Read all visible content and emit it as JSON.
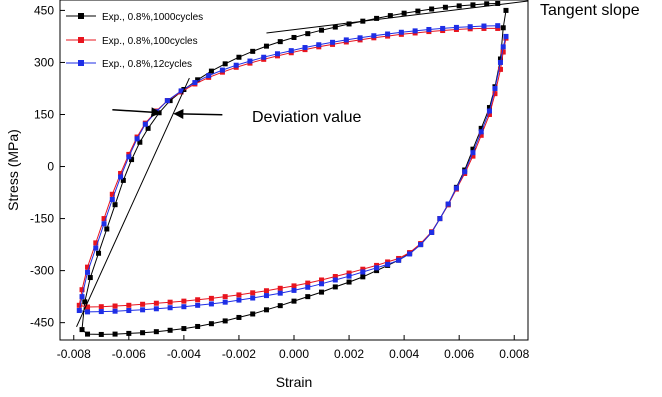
{
  "chart_data": {
    "type": "line",
    "xlabel": "Strain",
    "ylabel": "Stress (MPa)",
    "xlim": [
      -0.0085,
      0.0085
    ],
    "ylim": [
      -500,
      480
    ],
    "x_ticks": [
      -0.008,
      -0.006,
      -0.004,
      -0.002,
      0.0,
      0.002,
      0.004,
      0.006,
      0.008
    ],
    "x_tick_labels": [
      "-0.008",
      "-0.006",
      "-0.004",
      "-0.002",
      "0.000",
      "0.002",
      "0.004",
      "0.006",
      "0.008"
    ],
    "y_ticks": [
      450,
      300,
      150,
      0,
      -150,
      -300,
      -450
    ],
    "y_tick_labels": [
      "450",
      "300",
      "150",
      "0",
      "-150",
      "-300",
      "-450"
    ],
    "grid": false,
    "legend_position": "top-left",
    "series": [
      {
        "name": "Exp.,  0.8%,1000cycles",
        "color": "#000000",
        "marker": "square",
        "points": [
          [
            0.0077,
            450
          ],
          [
            0.0076,
            400
          ],
          [
            0.0075,
            310
          ],
          [
            0.0073,
            230
          ],
          [
            0.0071,
            170
          ],
          [
            0.0068,
            110
          ],
          [
            0.0065,
            50
          ],
          [
            0.0062,
            -10
          ],
          [
            0.0059,
            -60
          ],
          [
            0.0056,
            -110
          ],
          [
            0.0053,
            -150
          ],
          [
            0.005,
            -190
          ],
          [
            0.0046,
            -225
          ],
          [
            0.0042,
            -250
          ],
          [
            0.0038,
            -270
          ],
          [
            0.0034,
            -285
          ],
          [
            0.003,
            -300
          ],
          [
            0.0025,
            -318
          ],
          [
            0.002,
            -333
          ],
          [
            0.0015,
            -347
          ],
          [
            0.001,
            -362
          ],
          [
            0.0005,
            -375
          ],
          [
            0.0,
            -388
          ],
          [
            -0.0005,
            -401
          ],
          [
            -0.001,
            -413
          ],
          [
            -0.0015,
            -425
          ],
          [
            -0.002,
            -435
          ],
          [
            -0.0025,
            -445
          ],
          [
            -0.003,
            -453
          ],
          [
            -0.0035,
            -461
          ],
          [
            -0.004,
            -467
          ],
          [
            -0.0045,
            -472
          ],
          [
            -0.005,
            -476
          ],
          [
            -0.0055,
            -479
          ],
          [
            -0.006,
            -481
          ],
          [
            -0.0065,
            -483
          ],
          [
            -0.007,
            -484
          ],
          [
            -0.0075,
            -483
          ],
          [
            -0.0077,
            -470
          ],
          [
            -0.0076,
            -390
          ],
          [
            -0.0074,
            -320
          ],
          [
            -0.0071,
            -250
          ],
          [
            -0.0068,
            -180
          ],
          [
            -0.0065,
            -110
          ],
          [
            -0.0062,
            -40
          ],
          [
            -0.0059,
            20
          ],
          [
            -0.0056,
            70
          ],
          [
            -0.0053,
            110
          ],
          [
            -0.0049,
            155
          ],
          [
            -0.0045,
            190
          ],
          [
            -0.004,
            222
          ],
          [
            -0.0035,
            250
          ],
          [
            -0.003,
            275
          ],
          [
            -0.0025,
            296
          ],
          [
            -0.002,
            315
          ],
          [
            -0.0015,
            332
          ],
          [
            -0.001,
            347
          ],
          [
            -0.0005,
            360
          ],
          [
            0.0,
            372
          ],
          [
            0.0005,
            383
          ],
          [
            0.001,
            393
          ],
          [
            0.0015,
            402
          ],
          [
            0.002,
            411
          ],
          [
            0.0025,
            419
          ],
          [
            0.003,
            427
          ],
          [
            0.0035,
            435
          ],
          [
            0.004,
            442
          ],
          [
            0.0045,
            448
          ],
          [
            0.005,
            454
          ],
          [
            0.0055,
            459
          ],
          [
            0.006,
            463
          ],
          [
            0.0065,
            466
          ],
          [
            0.007,
            469
          ],
          [
            0.0074,
            470
          ]
        ]
      },
      {
        "name": "Exp.,  0.8%,100cycles",
        "color": "#e8141e",
        "marker": "square",
        "points": [
          [
            0.0077,
            370
          ],
          [
            0.0076,
            330
          ],
          [
            0.0075,
            280
          ],
          [
            0.0073,
            210
          ],
          [
            0.0071,
            150
          ],
          [
            0.0068,
            90
          ],
          [
            0.0065,
            30
          ],
          [
            0.0062,
            -20
          ],
          [
            0.0059,
            -65
          ],
          [
            0.0056,
            -110
          ],
          [
            0.0053,
            -150
          ],
          [
            0.005,
            -188
          ],
          [
            0.0046,
            -222
          ],
          [
            0.0042,
            -248
          ],
          [
            0.0038,
            -265
          ],
          [
            0.0034,
            -275
          ],
          [
            0.003,
            -285
          ],
          [
            0.0025,
            -296
          ],
          [
            0.002,
            -307
          ],
          [
            0.0015,
            -317
          ],
          [
            0.001,
            -327
          ],
          [
            0.0005,
            -336
          ],
          [
            0.0,
            -344
          ],
          [
            -0.0005,
            -351
          ],
          [
            -0.001,
            -358
          ],
          [
            -0.0015,
            -364
          ],
          [
            -0.002,
            -370
          ],
          [
            -0.0025,
            -375
          ],
          [
            -0.003,
            -380
          ],
          [
            -0.0035,
            -384
          ],
          [
            -0.004,
            -388
          ],
          [
            -0.0045,
            -391
          ],
          [
            -0.005,
            -394
          ],
          [
            -0.0055,
            -397
          ],
          [
            -0.006,
            -400
          ],
          [
            -0.0065,
            -402
          ],
          [
            -0.007,
            -404
          ],
          [
            -0.0075,
            -405
          ],
          [
            -0.0078,
            -400
          ],
          [
            -0.0077,
            -355
          ],
          [
            -0.0075,
            -290
          ],
          [
            -0.0072,
            -220
          ],
          [
            -0.0069,
            -150
          ],
          [
            -0.0066,
            -80
          ],
          [
            -0.0063,
            -20
          ],
          [
            -0.006,
            35
          ],
          [
            -0.0057,
            85
          ],
          [
            -0.0054,
            125
          ],
          [
            -0.005,
            160
          ],
          [
            -0.0046,
            190
          ],
          [
            -0.0041,
            215
          ],
          [
            -0.0036,
            238
          ],
          [
            -0.0031,
            257
          ],
          [
            -0.0026,
            272
          ],
          [
            -0.0021,
            286
          ],
          [
            -0.0016,
            298
          ],
          [
            -0.0011,
            309
          ],
          [
            -0.0006,
            319
          ],
          [
            -0.0001,
            328
          ],
          [
            0.0004,
            337
          ],
          [
            0.0009,
            345
          ],
          [
            0.0014,
            352
          ],
          [
            0.0019,
            359
          ],
          [
            0.0024,
            365
          ],
          [
            0.0029,
            371
          ],
          [
            0.0034,
            376
          ],
          [
            0.0039,
            381
          ],
          [
            0.0044,
            385
          ],
          [
            0.0049,
            389
          ],
          [
            0.0054,
            392
          ],
          [
            0.0059,
            395
          ],
          [
            0.0064,
            397
          ],
          [
            0.0069,
            398
          ],
          [
            0.0074,
            398
          ]
        ]
      },
      {
        "name": "Exp.,  0.8%,12cycles",
        "color": "#1e2ee6",
        "marker": "square",
        "points": [
          [
            0.0077,
            375
          ],
          [
            0.0076,
            345
          ],
          [
            0.0075,
            300
          ],
          [
            0.0073,
            225
          ],
          [
            0.0071,
            160
          ],
          [
            0.0068,
            100
          ],
          [
            0.0065,
            40
          ],
          [
            0.0062,
            -15
          ],
          [
            0.0059,
            -62
          ],
          [
            0.0056,
            -108
          ],
          [
            0.0053,
            -150
          ],
          [
            0.005,
            -190
          ],
          [
            0.0046,
            -225
          ],
          [
            0.0042,
            -252
          ],
          [
            0.0038,
            -270
          ],
          [
            0.0034,
            -282
          ],
          [
            0.003,
            -292
          ],
          [
            0.0025,
            -304
          ],
          [
            0.002,
            -316
          ],
          [
            0.0015,
            -327
          ],
          [
            0.001,
            -338
          ],
          [
            0.0005,
            -348
          ],
          [
            0.0,
            -357
          ],
          [
            -0.0005,
            -365
          ],
          [
            -0.001,
            -372
          ],
          [
            -0.0015,
            -379
          ],
          [
            -0.002,
            -385
          ],
          [
            -0.0025,
            -391
          ],
          [
            -0.003,
            -396
          ],
          [
            -0.0035,
            -400
          ],
          [
            -0.004,
            -404
          ],
          [
            -0.0045,
            -407
          ],
          [
            -0.005,
            -410
          ],
          [
            -0.0055,
            -413
          ],
          [
            -0.006,
            -415
          ],
          [
            -0.0065,
            -417
          ],
          [
            -0.007,
            -418
          ],
          [
            -0.0075,
            -419
          ],
          [
            -0.0078,
            -415
          ],
          [
            -0.0077,
            -375
          ],
          [
            -0.0075,
            -305
          ],
          [
            -0.0072,
            -235
          ],
          [
            -0.0069,
            -165
          ],
          [
            -0.0066,
            -95
          ],
          [
            -0.0063,
            -30
          ],
          [
            -0.006,
            28
          ],
          [
            -0.0057,
            80
          ],
          [
            -0.0054,
            122
          ],
          [
            -0.005,
            158
          ],
          [
            -0.0046,
            190
          ],
          [
            -0.0041,
            218
          ],
          [
            -0.0036,
            242
          ],
          [
            -0.0031,
            262
          ],
          [
            -0.0026,
            278
          ],
          [
            -0.0021,
            292
          ],
          [
            -0.0016,
            304
          ],
          [
            -0.0011,
            315
          ],
          [
            -0.0006,
            325
          ],
          [
            -0.0001,
            334
          ],
          [
            0.0004,
            343
          ],
          [
            0.0009,
            351
          ],
          [
            0.0014,
            358
          ],
          [
            0.0019,
            365
          ],
          [
            0.0024,
            371
          ],
          [
            0.0029,
            377
          ],
          [
            0.0034,
            382
          ],
          [
            0.0039,
            387
          ],
          [
            0.0044,
            391
          ],
          [
            0.0049,
            395
          ],
          [
            0.0054,
            398
          ],
          [
            0.0059,
            401
          ],
          [
            0.0064,
            403
          ],
          [
            0.0069,
            405
          ],
          [
            0.0074,
            406
          ]
        ]
      }
    ],
    "annotations": {
      "tangent_label": "Tangent slope",
      "deviation_label": "Deviation value",
      "tangent_line": [
        [
          -0.001,
          385
        ],
        [
          0.0085,
          477
        ]
      ],
      "elastic_line": [
        [
          -0.0079,
          -462
        ],
        [
          -0.0038,
          255
        ]
      ],
      "deviation_point": [
        -0.0046,
        155
      ]
    }
  }
}
